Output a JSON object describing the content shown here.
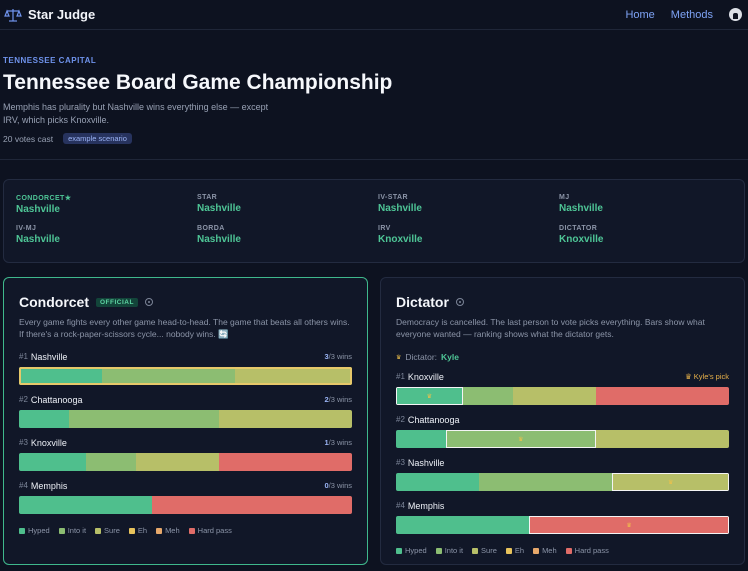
{
  "nav": {
    "brand": "Star Judge",
    "links": [
      "Home",
      "Methods"
    ]
  },
  "hero": {
    "eyebrow": "TENNESSEE CAPITAL",
    "title": "Tennessee Board Game Championship",
    "subtitle": "Memphis has plurality but Nashville wins everything else — except IRV, which picks Knoxville.",
    "votes": "20 votes cast",
    "badge": "example scenario"
  },
  "summary": [
    {
      "method": "CONDORCET★",
      "winner": "Nashville",
      "highlight": true
    },
    {
      "method": "STAR",
      "winner": "Nashville"
    },
    {
      "method": "IV-STAR",
      "winner": "Nashville"
    },
    {
      "method": "MJ",
      "winner": "Nashville"
    },
    {
      "method": "IV-MJ",
      "winner": "Nashville"
    },
    {
      "method": "BORDA",
      "winner": "Nashville"
    },
    {
      "method": "IRV",
      "winner": "Knoxville"
    },
    {
      "method": "DICTATOR",
      "winner": "Knoxville"
    }
  ],
  "colors": {
    "Hyped": "#4fbf8d",
    "Into it": "#8cbd72",
    "Sure": "#b7bf68",
    "Eh": "#e8c35c",
    "Meh": "#e7a86b",
    "Hard pass": "#e06c68"
  },
  "legend": [
    "Hyped",
    "Into it",
    "Sure",
    "Eh",
    "Meh",
    "Hard pass"
  ],
  "condorcet": {
    "title": "Condorcet",
    "badge": "OFFICIAL",
    "desc": "Every game fights every other game head-to-head. The game that beats all others wins. If there's a rock-paper-scissors cycle... nobody wins. 🔄",
    "rows": [
      {
        "rank": "#1",
        "name": "Nashville",
        "wins_n": "3",
        "wins_of": "/3 wins",
        "segments": [
          [
            0.25,
            "Hyped"
          ],
          [
            0.4,
            "Into it"
          ],
          [
            0.35,
            "Sure"
          ]
        ]
      },
      {
        "rank": "#2",
        "name": "Chattanooga",
        "wins_n": "2",
        "wins_of": "/3 wins",
        "segments": [
          [
            0.15,
            "Hyped"
          ],
          [
            0.45,
            "Into it"
          ],
          [
            0.4,
            "Sure"
          ]
        ]
      },
      {
        "rank": "#3",
        "name": "Knoxville",
        "wins_n": "1",
        "wins_of": "/3 wins",
        "segments": [
          [
            0.2,
            "Hyped"
          ],
          [
            0.15,
            "Into it"
          ],
          [
            0.25,
            "Sure"
          ],
          [
            0.4,
            "Hard pass"
          ]
        ]
      },
      {
        "rank": "#4",
        "name": "Memphis",
        "wins_n": "0",
        "wins_of": "/3 wins",
        "segments": [
          [
            0.4,
            "Hyped"
          ],
          [
            0.6,
            "Hard pass"
          ]
        ]
      }
    ]
  },
  "dictator_panel": {
    "title": "Dictator",
    "desc": "Democracy is cancelled. The last person to vote picks everything. Bars show what everyone wanted — ranking shows what the dictator gets.",
    "dictator_label": "Dictator:",
    "dictator_name": "Kyle",
    "pick_label": "Kyle's pick",
    "rows": [
      {
        "rank": "#1",
        "name": "Knoxville",
        "pick": true,
        "box": "Hyped",
        "segments": [
          [
            0.2,
            "Hyped"
          ],
          [
            0.15,
            "Into it"
          ],
          [
            0.25,
            "Sure"
          ],
          [
            0.4,
            "Hard pass"
          ]
        ]
      },
      {
        "rank": "#2",
        "name": "Chattanooga",
        "box": "Into it",
        "segments": [
          [
            0.15,
            "Hyped"
          ],
          [
            0.45,
            "Into it"
          ],
          [
            0.4,
            "Sure"
          ]
        ]
      },
      {
        "rank": "#3",
        "name": "Nashville",
        "box": "Sure",
        "segments": [
          [
            0.25,
            "Hyped"
          ],
          [
            0.4,
            "Into it"
          ],
          [
            0.35,
            "Sure"
          ]
        ]
      },
      {
        "rank": "#4",
        "name": "Memphis",
        "box": "Hard pass",
        "segments": [
          [
            0.4,
            "Hyped"
          ],
          [
            0.6,
            "Hard pass"
          ]
        ]
      }
    ]
  }
}
